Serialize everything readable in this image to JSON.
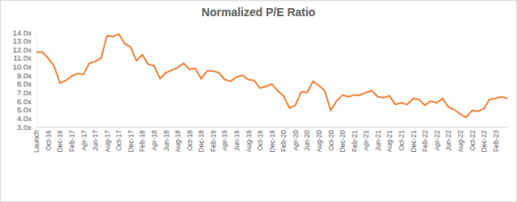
{
  "chart_data": {
    "type": "line",
    "title": "Normalized P/E Ratio",
    "categories": [
      "Launch",
      null,
      "Oct-16",
      null,
      "Dec-16",
      null,
      "Feb-17",
      null,
      "Apr-17",
      null,
      "Jun-17",
      null,
      "Aug-17",
      null,
      "Oct-17",
      null,
      "Dec-17",
      null,
      "Feb-18",
      null,
      "Apr-18",
      null,
      "Jun-18",
      null,
      "Aug-18",
      null,
      "Oct-18",
      null,
      "Dec-18",
      null,
      "Feb-19",
      null,
      "Apr-19",
      null,
      "Jun-19",
      null,
      "Aug-19",
      null,
      "Oct-19",
      null,
      "Dec-19",
      null,
      "Feb-20",
      null,
      "Apr-20",
      null,
      "Jun-20",
      null,
      "Aug-20",
      null,
      "Oct-20",
      null,
      "Dec-20",
      null,
      "Feb-21",
      null,
      "Apr-21",
      null,
      "Jun-21",
      null,
      "Aug-21",
      null,
      "Oct-21",
      null,
      "Dec-21",
      null,
      "Feb-22",
      null,
      "Apr-22",
      null,
      "Jun-22",
      null,
      "Aug-22",
      null,
      "Oct-22",
      null,
      "Dec-22",
      null,
      "Feb-23",
      null,
      null
    ],
    "values": [
      11.7,
      11.7,
      11.0,
      10.1,
      8.1,
      8.4,
      8.9,
      9.2,
      9.1,
      10.4,
      10.6,
      11.0,
      13.6,
      13.5,
      13.8,
      12.7,
      12.3,
      10.7,
      11.4,
      10.3,
      10.1,
      8.6,
      9.3,
      9.6,
      9.9,
      10.4,
      9.7,
      9.8,
      8.6,
      9.5,
      9.5,
      9.3,
      8.5,
      8.3,
      8.8,
      9.0,
      8.5,
      8.4,
      7.5,
      7.7,
      8.0,
      7.2,
      6.6,
      5.2,
      5.5,
      7.1,
      7.0,
      8.3,
      7.8,
      7.2,
      4.9,
      6.0,
      6.7,
      6.5,
      6.7,
      6.7,
      7.0,
      7.2,
      6.5,
      6.4,
      6.6,
      5.6,
      5.8,
      5.6,
      6.3,
      6.2,
      5.5,
      6.0,
      5.8,
      6.3,
      5.3,
      5.0,
      4.5,
      4.1,
      4.9,
      4.8,
      5.1,
      6.2,
      6.3,
      6.5,
      6.3
    ],
    "color": "#ed7d31",
    "ylim": [
      3,
      14
    ],
    "yticks": [
      {
        "value": 3,
        "label": "3.0x"
      },
      {
        "value": 4,
        "label": "4.0x"
      },
      {
        "value": 5,
        "label": "5.0x"
      },
      {
        "value": 6,
        "label": "6.0x"
      },
      {
        "value": 7,
        "label": "7.0x"
      },
      {
        "value": 8,
        "label": "8.0x"
      },
      {
        "value": 9,
        "label": "9.0x"
      },
      {
        "value": 10,
        "label": "10.0x"
      },
      {
        "value": 11,
        "label": "11.0x"
      },
      {
        "value": 12,
        "label": "12.0x"
      },
      {
        "value": 13,
        "label": "13.0x"
      },
      {
        "value": 14,
        "label": "14.0x"
      }
    ],
    "grid": false
  }
}
